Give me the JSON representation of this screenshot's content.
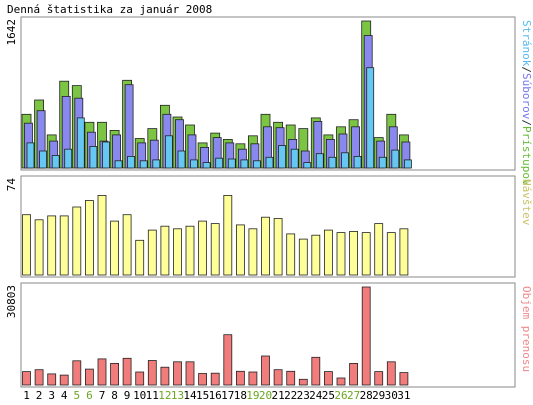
{
  "chart_data": {
    "type": "bar",
    "title": "Denná štatistika za január 2008",
    "categories": [
      "1",
      "2",
      "3",
      "4",
      "5",
      "6",
      "7",
      "8",
      "9",
      "10",
      "11",
      "12",
      "13",
      "14",
      "15",
      "16",
      "17",
      "18",
      "19",
      "20",
      "21",
      "22",
      "23",
      "24",
      "25",
      "26",
      "27",
      "28",
      "29",
      "30",
      "31"
    ],
    "weekend_days": [
      "5",
      "6",
      "12",
      "13",
      "19",
      "20",
      "26",
      "27"
    ],
    "weekend_label_color": "#6aa621",
    "weekday_label_color": "#000000",
    "panels": [
      {
        "axis_max_label": "1642",
        "axis_max": 1642,
        "side_labels": [
          {
            "text": "Stránok",
            "color": "#55bbee"
          },
          {
            "text": "/",
            "color": "#333333"
          },
          {
            "text": "Súborov",
            "color": "#7777ee"
          },
          {
            "text": "/",
            "color": "#333333"
          },
          {
            "text": "Prístupov",
            "color": "#66bb33"
          }
        ],
        "series": [
          {
            "name": "Prístupov",
            "color": "#7cc443",
            "values": [
              600,
              760,
              370,
              970,
              920,
              510,
              510,
              420,
              980,
              330,
              440,
              700,
              570,
              480,
              280,
              390,
              320,
              270,
              360,
              600,
              510,
              480,
              440,
              560,
              370,
              460,
              540,
              1642,
              340,
              600,
              370
            ]
          },
          {
            "name": "Súborov",
            "color": "#8888ee",
            "values": [
              500,
              640,
              300,
              800,
              780,
              400,
              300,
              370,
              930,
              280,
              310,
              600,
              540,
              370,
              230,
              340,
              280,
              210,
              270,
              460,
              450,
              320,
              190,
              520,
              320,
              380,
              460,
              1480,
              300,
              460,
              290
            ]
          },
          {
            "name": "Stránok",
            "color": "#66c7f3",
            "values": [
              280,
              190,
              140,
              210,
              560,
              240,
              290,
              80,
              130,
              80,
              90,
              360,
              190,
              90,
              60,
              110,
              100,
              90,
              80,
              120,
              250,
              210,
              60,
              160,
              120,
              170,
              130,
              1120,
              120,
              200,
              90
            ]
          }
        ]
      },
      {
        "axis_max_label": "74",
        "axis_max": 74,
        "side_labels": [
          {
            "text": "Návštev",
            "color": "#c9c266"
          }
        ],
        "series": [
          {
            "name": "Návštev",
            "color": "#ffff99",
            "values": [
              47,
              43,
              46,
              46,
              53,
              58,
              62,
              42,
              47,
              27,
              35,
              38,
              36,
              38,
              42,
              40,
              62,
              39,
              36,
              45,
              44,
              32,
              28,
              31,
              35,
              33,
              34,
              33,
              40,
              33,
              36
            ]
          }
        ]
      },
      {
        "axis_max_label": "30803",
        "axis_max": 30803,
        "side_labels": [
          {
            "text": "Objem prenosu",
            "color": "#ee8888"
          }
        ],
        "series": [
          {
            "name": "Objem prenosu",
            "color": "#f07c7c",
            "values": [
              4200,
              4800,
              3500,
              3100,
              7600,
              5000,
              8200,
              6800,
              8400,
              4100,
              7700,
              5600,
              7300,
              7300,
              3600,
              3700,
              15800,
              4300,
              4100,
              9100,
              4800,
              4300,
              1800,
              8700,
              4200,
              2200,
              6800,
              30803,
              4200,
              7300,
              3900
            ]
          }
        ]
      }
    ]
  }
}
